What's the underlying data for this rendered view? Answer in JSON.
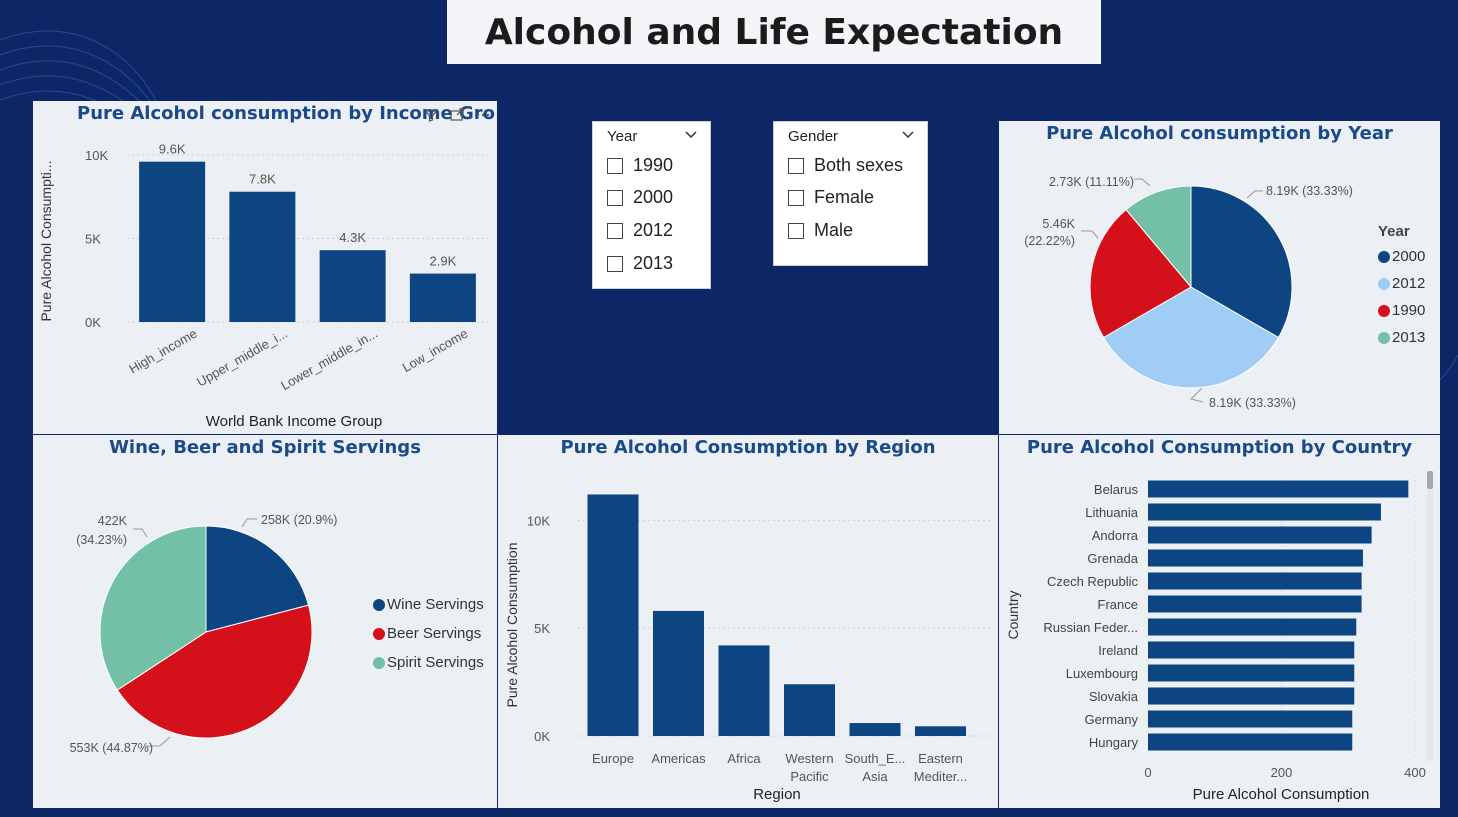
{
  "header": {
    "title": "Alcohol and Life Expectation"
  },
  "colors": {
    "navy": "#0c4582",
    "light_blue": "#9fcdf5",
    "red": "#d4111a",
    "teal": "#72c1a7",
    "title_blue": "#1a4a8a",
    "background": "#0d2766"
  },
  "income_chart": {
    "title": "Pure Alcohol consumption by Income Gro",
    "ylabel": "Pure Alcohol Consumpti...",
    "xlabel": "World Bank Income Group",
    "yticks": [
      "10K",
      "5K",
      "0K"
    ],
    "bar_labels": [
      "9.6K",
      "7.8K",
      "4.3K",
      "2.9K"
    ],
    "categories": [
      "High_income",
      "Upper_middle_i...",
      "Lower_middle_in...",
      "Low_income"
    ],
    "icons": [
      "filter-icon",
      "focus-mode-icon",
      "more-options-icon"
    ]
  },
  "year_slicer": {
    "header": "Year",
    "options": [
      "1990",
      "2000",
      "2012",
      "2013"
    ]
  },
  "gender_slicer": {
    "header": "Gender",
    "options": [
      "Both sexes",
      "Female",
      "Male"
    ]
  },
  "year_pie": {
    "title": "Pure Alcohol consumption by Year",
    "legend_title": "Year",
    "legend": [
      "2000",
      "2012",
      "1990",
      "2013"
    ],
    "labels": [
      "8.19K (33.33%)",
      "8.19K (33.33%)",
      "5.46K",
      "(22.22%)",
      "2.73K (11.11%)"
    ]
  },
  "servings_pie": {
    "title": "Wine, Beer and Spirit Servings",
    "legend": [
      "Wine Servings",
      "Beer Servings",
      "Spirit Servings"
    ],
    "labels": [
      "258K (20.9%)",
      "553K (44.87%)",
      "422K",
      "(34.23%)"
    ]
  },
  "region_chart": {
    "title": "Pure Alcohol Consumption by Region",
    "ylabel": "Pure Alcohol Consumption",
    "xlabel": "Region",
    "yticks": [
      "10K",
      "5K",
      "0K"
    ],
    "categories": [
      "Europe",
      "Americas",
      "Africa",
      "Western",
      "Pacific",
      "South_E...",
      "Asia",
      "Eastern",
      "Mediter..."
    ]
  },
  "country_chart": {
    "title": "Pure Alcohol Consumption by Country",
    "ylabel": "Country",
    "xlabel": "Pure Alcohol Consumption",
    "xticks": [
      "0",
      "200",
      "400"
    ],
    "countries": [
      "Belarus",
      "Lithuania",
      "Andorra",
      "Grenada",
      "Czech Republic",
      "France",
      "Russian Feder...",
      "Ireland",
      "Luxembourg",
      "Slovakia",
      "Germany",
      "Hungary"
    ]
  },
  "chart_data": [
    {
      "type": "bar",
      "title": "Pure Alcohol consumption by Income Gro",
      "categories": [
        "High_income",
        "Upper_middle_i...",
        "Lower_middle_in...",
        "Low_income"
      ],
      "values": [
        9600,
        7800,
        4300,
        2900
      ],
      "ylim": [
        0,
        10000
      ],
      "xlabel": "World Bank Income Group",
      "ylabel": "Pure Alcohol Consumpti..."
    },
    {
      "type": "pie",
      "title": "Pure Alcohol consumption by Year",
      "categories": [
        "2000",
        "2012",
        "1990",
        "2013"
      ],
      "values": [
        8190,
        8190,
        5460,
        2730
      ]
    },
    {
      "type": "pie",
      "title": "Wine, Beer and Spirit Servings",
      "categories": [
        "Wine Servings",
        "Beer Servings",
        "Spirit Servings"
      ],
      "values": [
        258000,
        553000,
        422000
      ]
    },
    {
      "type": "bar",
      "title": "Pure Alcohol Consumption by Region",
      "categories": [
        "Europe",
        "Americas",
        "Africa",
        "Western Pacific",
        "South_E... Asia",
        "Eastern Mediter..."
      ],
      "values": [
        11200,
        5800,
        4200,
        2400,
        600,
        450
      ],
      "ylim": [
        0,
        11500
      ],
      "xlabel": "Region",
      "ylabel": "Pure Alcohol Consumption"
    },
    {
      "type": "bar",
      "orientation": "horizontal",
      "title": "Pure Alcohol Consumption by Country",
      "categories": [
        "Belarus",
        "Lithuania",
        "Andorra",
        "Grenada",
        "Czech Republic",
        "France",
        "Russian Feder...",
        "Ireland",
        "Luxembourg",
        "Slovakia",
        "Germany",
        "Hungary"
      ],
      "values": [
        390,
        349,
        335,
        322,
        320,
        320,
        312,
        309,
        309,
        309,
        306,
        306
      ],
      "xlim": [
        0,
        420
      ],
      "xlabel": "Pure Alcohol Consumption",
      "ylabel": "Country"
    }
  ]
}
